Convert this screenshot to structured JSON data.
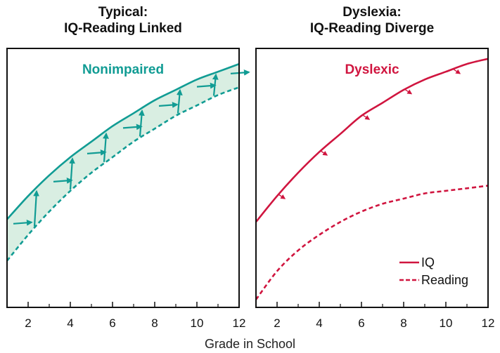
{
  "x_axis_label": "Grade in School",
  "chart_data": [
    {
      "type": "line",
      "title_line1": "Typical:",
      "title_line2": "IQ-Reading Linked",
      "group_label": "Nonimpaired",
      "xlim": [
        1,
        12
      ],
      "ylim": [
        0,
        100
      ],
      "x_ticks": [
        "2",
        "4",
        "6",
        "8",
        "10",
        "12"
      ],
      "x": [
        1,
        2,
        3,
        4,
        5,
        6,
        7,
        8,
        9,
        10,
        11,
        12
      ],
      "series": [
        {
          "name": "IQ",
          "style": "solid",
          "values": [
            34,
            43,
            51,
            58,
            64,
            70,
            75,
            80,
            84,
            88,
            91,
            94
          ]
        },
        {
          "name": "Reading",
          "style": "dashed",
          "values": [
            18,
            28,
            37,
            45,
            52,
            58,
            64,
            69,
            74,
            78,
            82,
            85
          ]
        }
      ],
      "color": "#119c94",
      "fill_color": "#d9eee2",
      "arrows_x": [
        1.3,
        2.3,
        3.2,
        4.0,
        4.8,
        5.6,
        6.5,
        7.3,
        8.2,
        9.1,
        10.0,
        10.8,
        11.6
      ]
    },
    {
      "type": "line",
      "title_line1": "Dyslexia:",
      "title_line2": "IQ-Reading Diverge",
      "group_label": "Dyslexic",
      "xlim": [
        1,
        12
      ],
      "ylim": [
        0,
        100
      ],
      "x_ticks": [
        "2",
        "4",
        "6",
        "8",
        "10",
        "12"
      ],
      "x": [
        1,
        2,
        3,
        4,
        5,
        6,
        7,
        8,
        9,
        10,
        11,
        12
      ],
      "series": [
        {
          "name": "IQ",
          "style": "solid",
          "values": [
            33,
            43,
            52,
            60,
            67,
            74,
            79,
            84,
            88,
            91,
            94,
            96
          ]
        },
        {
          "name": "Reading",
          "style": "dashed",
          "values": [
            3,
            14,
            22,
            28,
            33,
            37,
            40,
            42,
            44,
            45,
            46,
            47
          ]
        }
      ],
      "color": "#d0153f",
      "arrows_x": [
        2.1,
        4.1,
        6.1,
        8.1,
        10.4
      ]
    }
  ],
  "legend": {
    "position": "bottom-right",
    "items": [
      {
        "label": "IQ",
        "style": "solid"
      },
      {
        "label": "Reading",
        "style": "dashed"
      }
    ]
  }
}
